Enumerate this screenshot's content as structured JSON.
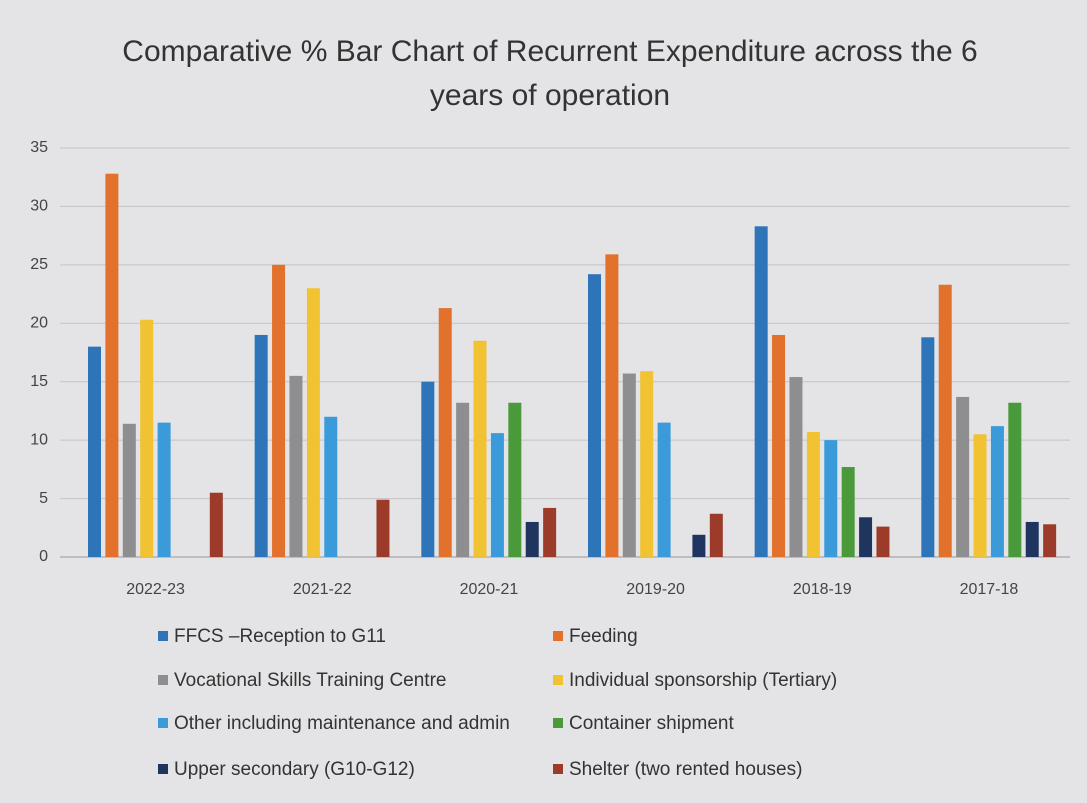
{
  "chart_data": {
    "type": "bar",
    "title": "Comparative % Bar Chart of Recurrent Expenditure across the 6 years of operation",
    "categories": [
      "2022-23",
      "2021-22",
      "2020-21",
      "2019-20",
      "2018-19",
      "2017-18"
    ],
    "series": [
      {
        "name": "FFCS –Reception to G11",
        "color": "#2e74b8",
        "values": [
          18,
          19,
          15,
          24.2,
          28.3,
          18.8
        ]
      },
      {
        "name": "Feeding",
        "color": "#e2712c",
        "values": [
          32.8,
          25,
          21.3,
          25.9,
          19,
          23.3
        ]
      },
      {
        "name": "Vocational Skills Training Centre",
        "color": "#8e8e90",
        "values": [
          11.4,
          15.5,
          13.2,
          15.7,
          15.4,
          13.7
        ]
      },
      {
        "name": "Individual sponsorship (Tertiary)",
        "color": "#f1c232",
        "values": [
          20.3,
          23,
          18.5,
          15.9,
          10.7,
          10.5
        ]
      },
      {
        "name": "Other including maintenance and admin",
        "color": "#3b9bda",
        "values": [
          11.5,
          12,
          10.6,
          11.5,
          10,
          11.2
        ]
      },
      {
        "name": "Container shipment",
        "color": "#4a9a3c",
        "values": [
          null,
          null,
          13.2,
          null,
          7.7,
          13.2
        ]
      },
      {
        "name": "Upper secondary (G10-G12)",
        "color": "#1f3560",
        "values": [
          null,
          null,
          3,
          1.9,
          3.4,
          3
        ]
      },
      {
        "name": "Shelter (two rented houses)",
        "color": "#9c3b2a",
        "values": [
          5.5,
          4.9,
          4.2,
          3.7,
          2.6,
          2.8
        ]
      }
    ],
    "ylim": [
      0,
      35
    ],
    "yticks": [
      0,
      5,
      10,
      15,
      20,
      25,
      30,
      35
    ],
    "grid": true,
    "legend": "bottom"
  }
}
